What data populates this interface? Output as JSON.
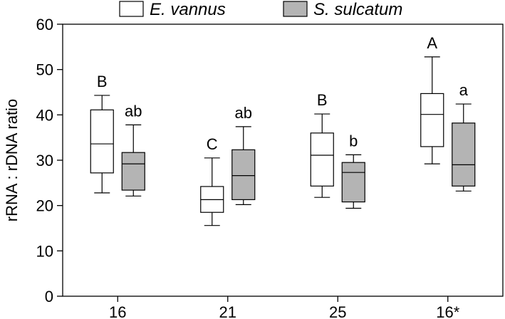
{
  "chart_data": {
    "type": "box",
    "title": "",
    "xlabel": "",
    "ylabel": "rRNA : rDNA ratio",
    "ylim": [
      0,
      60
    ],
    "yticks": [
      0,
      10,
      20,
      30,
      40,
      50,
      60
    ],
    "categories": [
      "16",
      "21",
      "25",
      "16*"
    ],
    "legend_position": "top-center",
    "series": [
      {
        "name": "E. vannus",
        "color": "#ffffff",
        "boxes": [
          {
            "min": 22.8,
            "q1": 27.2,
            "median": 33.6,
            "q3": 41.1,
            "max": 44.3,
            "letter": "B"
          },
          {
            "min": 15.6,
            "q1": 18.5,
            "median": 21.3,
            "q3": 24.2,
            "max": 30.5,
            "letter": "C"
          },
          {
            "min": 21.8,
            "q1": 24.3,
            "median": 31.1,
            "q3": 36.0,
            "max": 40.2,
            "letter": "B"
          },
          {
            "min": 29.2,
            "q1": 33.0,
            "median": 40.1,
            "q3": 44.7,
            "max": 52.8,
            "letter": "A"
          }
        ]
      },
      {
        "name": "S. sulcatum",
        "color": "#b4b4b4",
        "boxes": [
          {
            "min": 22.1,
            "q1": 23.4,
            "median": 29.2,
            "q3": 31.7,
            "max": 37.8,
            "letter": "ab"
          },
          {
            "min": 20.2,
            "q1": 21.3,
            "median": 26.6,
            "q3": 32.3,
            "max": 37.4,
            "letter": "ab"
          },
          {
            "min": 19.4,
            "q1": 20.8,
            "median": 27.3,
            "q3": 29.5,
            "max": 31.2,
            "letter": "b"
          },
          {
            "min": 23.2,
            "q1": 24.3,
            "median": 29.0,
            "q3": 38.2,
            "max": 42.4,
            "letter": "a"
          }
        ]
      }
    ]
  }
}
